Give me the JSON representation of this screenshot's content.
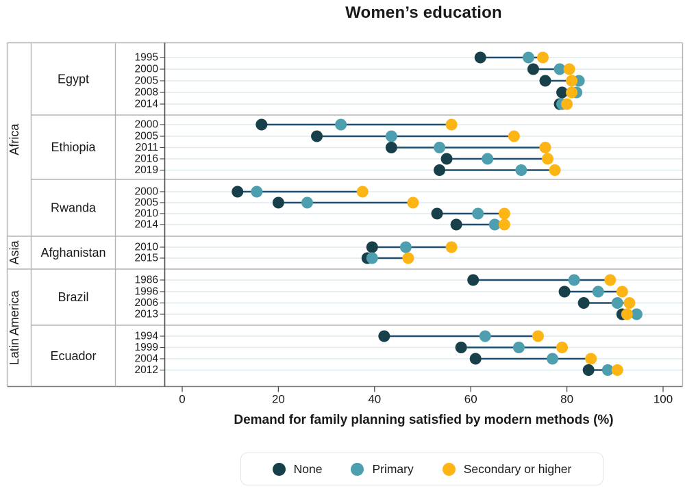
{
  "title": "Women’s education",
  "xlabel": "Demand for family planning satisfied by modern methods (%)",
  "colors": {
    "none": "#17404a",
    "primary": "#4d9fb0",
    "secondary": "#fcb514",
    "connector": "#1d4e70",
    "gridline": "#dce9ef",
    "frame": "#b4b4b4",
    "axis": "#555555"
  },
  "legend": {
    "items": [
      {
        "label": "None",
        "series": "none"
      },
      {
        "label": "Primary",
        "series": "primary"
      },
      {
        "label": "Secondary or higher",
        "series": "secondary"
      }
    ]
  },
  "x_axis": {
    "ticks": [
      0,
      20,
      40,
      60,
      80,
      100
    ]
  },
  "chart_data": {
    "type": "scatter",
    "subtype": "dumbbell-dot-plot",
    "series": [
      "None",
      "Primary",
      "Secondary or higher"
    ],
    "xlim": [
      0,
      100
    ],
    "grid": "on",
    "legend_position": "bottom",
    "groups": [
      {
        "region": "Africa",
        "country": "Egypt",
        "rows": [
          {
            "year": "1995",
            "values": {
              "none": 62,
              "primary": 72,
              "secondary": 75
            }
          },
          {
            "year": "2000",
            "values": {
              "none": 73,
              "primary": 78.5,
              "secondary": 80.5
            }
          },
          {
            "year": "2005",
            "values": {
              "none": 75.5,
              "primary": 82.5,
              "secondary": 81
            }
          },
          {
            "year": "2008",
            "values": {
              "none": 79,
              "primary": 82,
              "secondary": 81
            }
          },
          {
            "year": "2014",
            "values": {
              "none": 78.5,
              "primary": 79,
              "secondary": 80
            }
          }
        ]
      },
      {
        "region": "Africa",
        "country": "Ethiopia",
        "rows": [
          {
            "year": "2000",
            "values": {
              "none": 16.5,
              "primary": 33,
              "secondary": 56
            }
          },
          {
            "year": "2005",
            "values": {
              "none": 28,
              "primary": 43.5,
              "secondary": 69
            }
          },
          {
            "year": "2011",
            "values": {
              "none": 43.5,
              "primary": 53.5,
              "secondary": 75.5
            }
          },
          {
            "year": "2016",
            "values": {
              "none": 55,
              "primary": 63.5,
              "secondary": 76
            }
          },
          {
            "year": "2019",
            "values": {
              "none": 53.5,
              "primary": 70.5,
              "secondary": 77.5
            }
          }
        ]
      },
      {
        "region": "Africa",
        "country": "Rwanda",
        "rows": [
          {
            "year": "2000",
            "values": {
              "none": 11.5,
              "primary": 15.5,
              "secondary": 37.5
            }
          },
          {
            "year": "2005",
            "values": {
              "none": 20,
              "primary": 26,
              "secondary": 48
            }
          },
          {
            "year": "2010",
            "values": {
              "none": 53,
              "primary": 61.5,
              "secondary": 67
            }
          },
          {
            "year": "2014",
            "values": {
              "none": 57,
              "primary": 65,
              "secondary": 67
            }
          }
        ]
      },
      {
        "region": "Asia",
        "country": "Afghanistan",
        "rows": [
          {
            "year": "2010",
            "values": {
              "none": 39.5,
              "primary": 46.5,
              "secondary": 56
            }
          },
          {
            "year": "2015",
            "values": {
              "none": 38.5,
              "primary": 39.5,
              "secondary": 47
            }
          }
        ]
      },
      {
        "region": "Latin America",
        "country": "Brazil",
        "rows": [
          {
            "year": "1986",
            "values": {
              "none": 60.5,
              "primary": 81.5,
              "secondary": 89
            }
          },
          {
            "year": "1996",
            "values": {
              "none": 79.5,
              "primary": 86.5,
              "secondary": 91.5
            }
          },
          {
            "year": "2006",
            "values": {
              "none": 83.5,
              "primary": 90.5,
              "secondary": 93
            }
          },
          {
            "year": "2013",
            "values": {
              "none": 91.5,
              "primary": 94.5,
              "secondary": 92.5
            }
          }
        ]
      },
      {
        "region": "Latin America",
        "country": "Ecuador",
        "rows": [
          {
            "year": "1994",
            "values": {
              "none": 42,
              "primary": 63,
              "secondary": 74
            }
          },
          {
            "year": "1999",
            "values": {
              "none": 58,
              "primary": 70,
              "secondary": 79
            }
          },
          {
            "year": "2004",
            "values": {
              "none": 61,
              "primary": 77,
              "secondary": 85
            }
          },
          {
            "year": "2012",
            "values": {
              "none": 84.5,
              "primary": 88.5,
              "secondary": 90.5
            }
          }
        ]
      }
    ]
  }
}
